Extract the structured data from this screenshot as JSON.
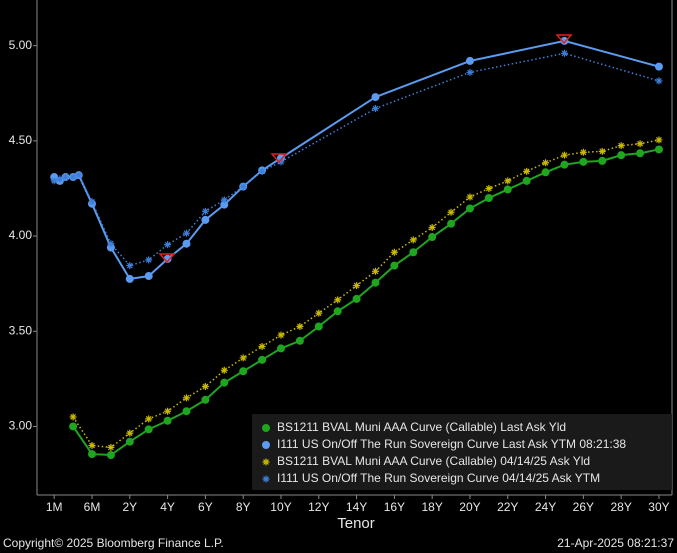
{
  "chart_data": {
    "type": "line",
    "x_label": "Tenor",
    "xlim": [
      -2.91,
      30.69
    ],
    "xticks": [
      {
        "value": -2,
        "label": "1M"
      },
      {
        "value": 0,
        "label": "6M"
      },
      {
        "value": 2,
        "label": "2Y"
      },
      {
        "value": 4,
        "label": "4Y"
      },
      {
        "value": 6,
        "label": "6Y"
      },
      {
        "value": 8,
        "label": "8Y"
      },
      {
        "value": 10,
        "label": "10Y"
      },
      {
        "value": 12,
        "label": "12Y"
      },
      {
        "value": 14,
        "label": "14Y"
      },
      {
        "value": 16,
        "label": "16Y"
      },
      {
        "value": 18,
        "label": "18Y"
      },
      {
        "value": 20,
        "label": "20Y"
      },
      {
        "value": 22,
        "label": "22Y"
      },
      {
        "value": 24,
        "label": "24Y"
      },
      {
        "value": 26,
        "label": "26Y"
      },
      {
        "value": 28,
        "label": "28Y"
      },
      {
        "value": 30,
        "label": "30Y"
      }
    ],
    "ylim": [
      2.64,
      5.24
    ],
    "yticks": [
      {
        "value": 3,
        "label": "3.00"
      },
      {
        "value": 3.5,
        "label": "3.50"
      },
      {
        "value": 4,
        "label": "4.00"
      },
      {
        "value": 4.5,
        "label": "4.50"
      },
      {
        "value": 5,
        "label": "5.00"
      }
    ],
    "legend": "lower right",
    "series": [
      {
        "name": "BS1211 BVAL Muni AAA Curve (Callable) Last Ask Yld",
        "color": "#1fa51f",
        "marker": "circle",
        "linestyle": "solid",
        "x": [
          -1,
          0,
          1,
          2,
          3,
          4,
          5,
          6,
          7,
          8,
          9,
          10,
          11,
          12,
          13,
          14,
          15,
          16,
          17,
          18,
          19,
          20,
          21,
          22,
          23,
          24,
          25,
          26,
          27,
          28,
          29,
          30
        ],
        "values": [
          3.0,
          2.855,
          2.85,
          2.92,
          2.985,
          3.03,
          3.08,
          3.14,
          3.23,
          3.29,
          3.35,
          3.41,
          3.45,
          3.525,
          3.605,
          3.67,
          3.755,
          3.845,
          3.915,
          3.995,
          4.065,
          4.145,
          4.2,
          4.245,
          4.29,
          4.335,
          4.375,
          4.39,
          4.395,
          4.425,
          4.435,
          4.455
        ]
      },
      {
        "name": "I111 US On/Off The Run Sovereign Curve Last Ask YTM 08:21:38",
        "color": "#5b9cf2",
        "marker": "circle",
        "linestyle": "solid",
        "x": [
          -2,
          -1.7,
          -1.4,
          -1,
          -0.7,
          0,
          1,
          2,
          3,
          4,
          5,
          6,
          7,
          8,
          9,
          10,
          15,
          20,
          25,
          30
        ],
        "values": [
          4.31,
          4.29,
          4.31,
          4.31,
          4.32,
          4.17,
          3.94,
          3.775,
          3.79,
          3.88,
          3.96,
          4.085,
          4.165,
          4.26,
          4.345,
          4.41,
          4.73,
          4.92,
          5.025,
          4.89
        ]
      },
      {
        "name": "BS1211 BVAL Muni AAA Curve (Callable) 04/14/25 Ask Yld",
        "color": "#c9b900",
        "marker": "asterisk",
        "linestyle": "dotted",
        "x": [
          -1,
          0,
          1,
          2,
          3,
          4,
          5,
          6,
          7,
          8,
          9,
          10,
          11,
          12,
          13,
          14,
          15,
          16,
          17,
          18,
          19,
          20,
          21,
          22,
          23,
          24,
          25,
          26,
          27,
          28,
          29,
          30
        ],
        "values": [
          3.05,
          2.9,
          2.89,
          2.965,
          3.04,
          3.08,
          3.15,
          3.21,
          3.295,
          3.36,
          3.42,
          3.48,
          3.525,
          3.595,
          3.665,
          3.74,
          3.815,
          3.915,
          3.98,
          4.045,
          4.125,
          4.205,
          4.25,
          4.29,
          4.34,
          4.385,
          4.425,
          4.44,
          4.445,
          4.475,
          4.485,
          4.505
        ]
      },
      {
        "name": "I111 US On/Off The Run Sovereign Curve 04/14/25 Ask YTM",
        "color": "#3d7fd8",
        "marker": "asterisk",
        "linestyle": "dotted",
        "x": [
          -2,
          -1.7,
          -1.4,
          -1,
          -0.7,
          0,
          1,
          2,
          3,
          4,
          5,
          6,
          7,
          8,
          9,
          10,
          15,
          20,
          25,
          30
        ],
        "values": [
          4.29,
          4.3,
          4.31,
          4.31,
          4.32,
          4.18,
          3.96,
          3.845,
          3.875,
          3.955,
          4.015,
          4.13,
          4.19,
          4.26,
          4.34,
          4.39,
          4.67,
          4.86,
          4.96,
          4.815
        ]
      }
    ]
  },
  "footer": {
    "copyright": "Copyright© 2025 Bloomberg Finance L.P.",
    "timestamp": "21-Apr-2025 08:21:37"
  }
}
